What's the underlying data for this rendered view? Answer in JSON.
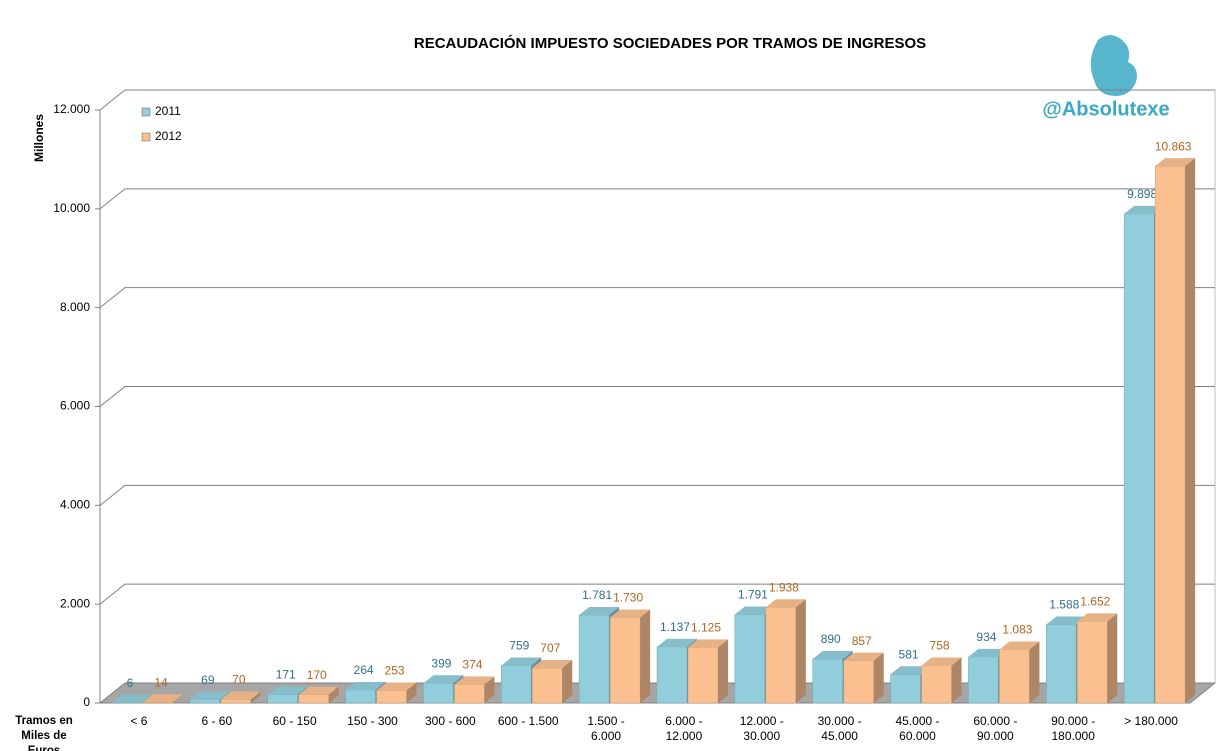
{
  "chart_data": {
    "type": "bar3d",
    "title": "RECAUDACIÓN IMPUESTO SOCIEDADES POR TRAMOS DE INGRESOS",
    "y_axis_label": "Millones",
    "x_axis_label": "Tramos en Miles de Euros",
    "watermark": "@Absolutexe",
    "categories": [
      "< 6",
      "6 - 60",
      "60 - 150",
      "150 - 300",
      "300 - 600",
      "600 - 1.500",
      "1.500 - 6.000",
      "6.000 - 12.000",
      "12.000 - 30.000",
      "30.000 - 45.000",
      "45.000 - 60.000",
      "60.000 - 90.000",
      "90.000 - 180.000",
      "> 180.000"
    ],
    "series": [
      {
        "name": "2011",
        "color": "#92cddc",
        "values": [
          6,
          69,
          171,
          264,
          399,
          759,
          1781,
          1137,
          1791,
          890,
          581,
          934,
          1588,
          9898
        ],
        "value_labels": [
          "6",
          "69",
          "171",
          "264",
          "399",
          "759",
          "1.781",
          "1.137",
          "1.791",
          "890",
          "581",
          "934",
          "1.588",
          "9.898"
        ]
      },
      {
        "name": "2012",
        "color": "#fac090",
        "values": [
          14,
          70,
          170,
          253,
          374,
          707,
          1730,
          1125,
          1938,
          857,
          758,
          1083,
          1652,
          10863
        ],
        "value_labels": [
          "14",
          "70",
          "170",
          "253",
          "374",
          "707",
          "1.730",
          "1.125",
          "1.938",
          "857",
          "758",
          "1.083",
          "1.652",
          "10.863"
        ]
      }
    ],
    "ylim": [
      0,
      12000
    ],
    "yticks": [
      0,
      {
        "value": 2000,
        "label": "2.000"
      },
      {
        "value": 4000,
        "label": "4.000"
      },
      {
        "value": 6000,
        "label": "6.000"
      },
      {
        "value": 8000,
        "label": "8.000"
      },
      {
        "value": 10000,
        "label": "10.000"
      },
      {
        "value": 12000,
        "label": "12.000"
      }
    ],
    "grid": true,
    "legend": "top-left"
  }
}
